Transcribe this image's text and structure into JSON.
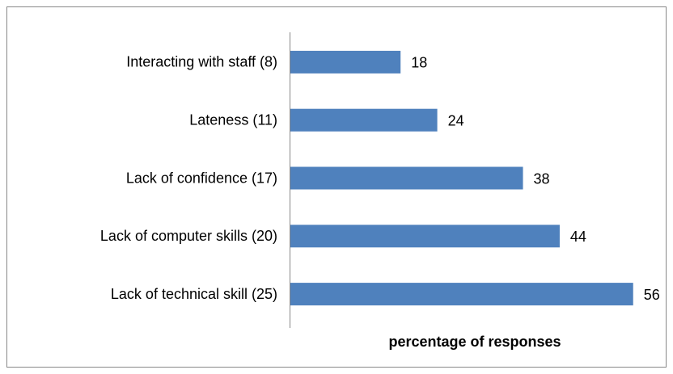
{
  "chart_data": {
    "type": "barh",
    "categories": [
      "Interacting with staff (8)",
      "Lateness (11)",
      "Lack of confidence (17)",
      "Lack of computer skills (20)",
      "Lack of technical skill (25)"
    ],
    "values": [
      18,
      24,
      38,
      44,
      56
    ],
    "color": "#4f81bd",
    "xlim": [
      0,
      60
    ],
    "xlabel": "percentage of responses"
  }
}
